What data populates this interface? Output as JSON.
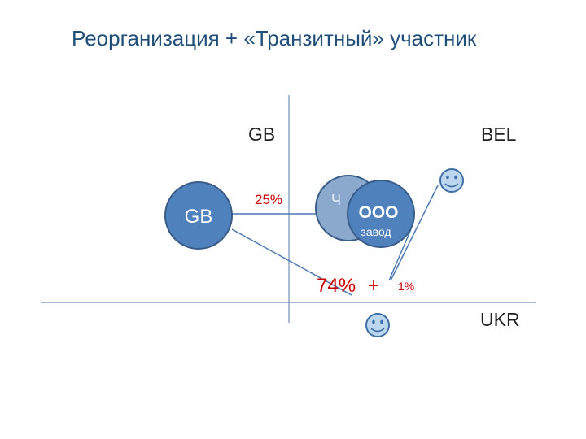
{
  "slide": {
    "title": "Реорганизация + «Транзитный» участник"
  },
  "regions": {
    "gb": "GB",
    "bel": "BEL",
    "ukr": "UKR"
  },
  "entities": {
    "gb_company": "GB",
    "hidden_entity_partial": "Ч",
    "ooo": "ООО",
    "factory": "завод"
  },
  "shares": {
    "gb": "25%",
    "main": "74%",
    "plus": "+",
    "minor": "1%"
  },
  "colors": {
    "title": "#1f4e79",
    "circle_fill": "#4f81bd",
    "circle_stroke": "#385d8a",
    "circle_back": "#8aa9cc",
    "smiley_fill": "#bdd7ee",
    "smiley_stroke": "#3f6fa8",
    "line": "#4a78b0",
    "axis": "#6f8fbd",
    "percent": "#cc0000"
  }
}
